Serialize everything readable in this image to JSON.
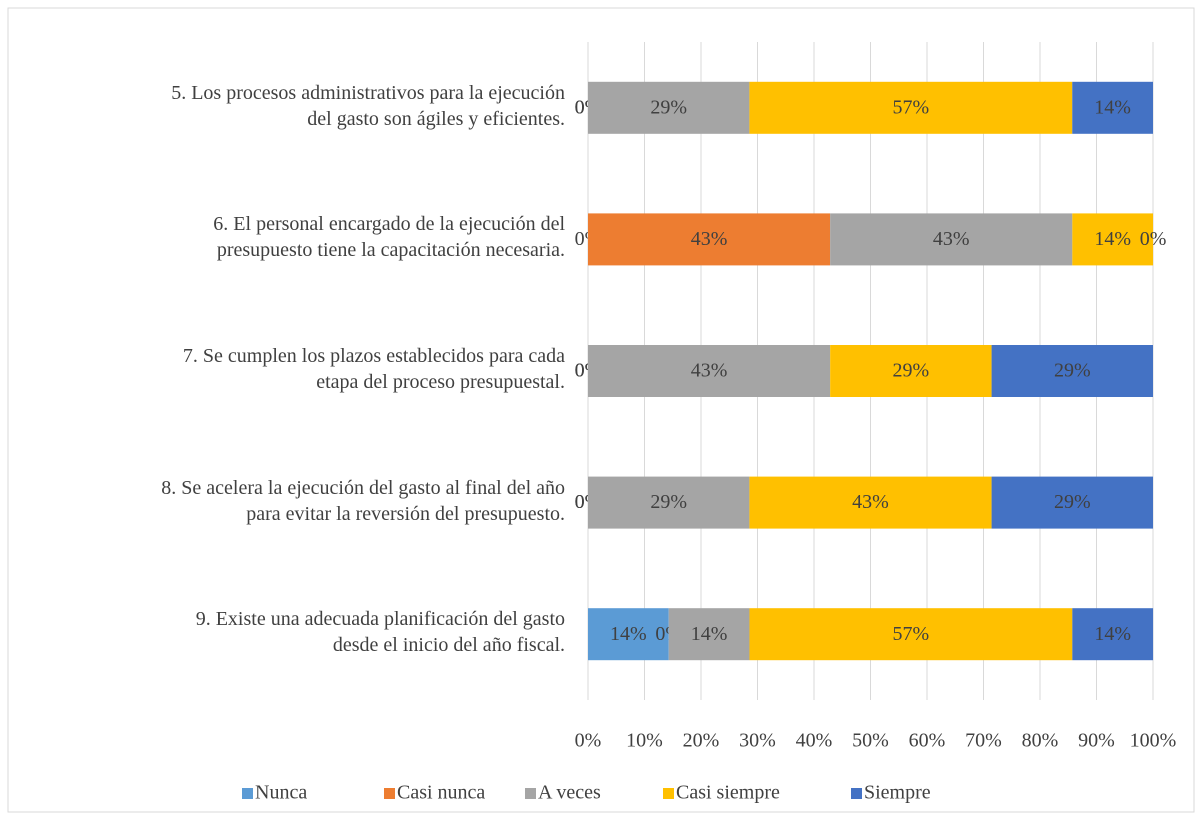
{
  "chart_data": {
    "type": "stacked_barh",
    "categories": [
      "5. Los procesos administrativos para la ejecución\ndel gasto son ágiles y eficientes.",
      "6. El personal encargado de la ejecución del\npresupuesto tiene la capacitación necesaria.",
      "7. Se cumplen los plazos establecidos para cada\netapa del proceso presupuestal.",
      "8. Se acelera la ejecución del gasto al final del año\npara evitar la reversión del presupuesto.",
      "9. Existe una adecuada planificación del gasto\ndesde el inicio del año fiscal."
    ],
    "series": [
      {
        "name": "Nunca",
        "color": "#5b9bd5",
        "values": [
          0,
          0,
          0,
          0,
          14.29
        ],
        "value_labels": [
          "0%",
          "0%",
          "0%",
          "0%",
          "14%"
        ]
      },
      {
        "name": "Casi nunca",
        "color": "#ed7d31",
        "values": [
          0,
          42.86,
          0,
          0,
          0
        ],
        "value_labels": [
          "0%",
          "43%",
          "0%",
          "0%",
          "0%"
        ]
      },
      {
        "name": "A veces",
        "color": "#a5a5a5",
        "values": [
          28.57,
          42.86,
          42.86,
          28.57,
          14.29
        ],
        "value_labels": [
          "29%",
          "43%",
          "43%",
          "29%",
          "14%"
        ]
      },
      {
        "name": "Casi siempre",
        "color": "#ffc000",
        "values": [
          57.14,
          14.29,
          28.57,
          42.86,
          57.14
        ],
        "value_labels": [
          "57%",
          "14%",
          "29%",
          "43%",
          "57%"
        ]
      },
      {
        "name": "Siempre",
        "color": "#4472c4",
        "values": [
          14.29,
          0,
          28.57,
          28.57,
          14.29
        ],
        "value_labels": [
          "14%",
          "0%",
          "29%",
          "29%",
          "14%"
        ]
      }
    ],
    "xlim": [
      0,
      100
    ],
    "xticks": [
      {
        "value": 0,
        "label": "0%"
      },
      {
        "value": 10,
        "label": "10%"
      },
      {
        "value": 20,
        "label": "20%"
      },
      {
        "value": 30,
        "label": "30%"
      },
      {
        "value": 40,
        "label": "40%"
      },
      {
        "value": 50,
        "label": "50%"
      },
      {
        "value": 60,
        "label": "60%"
      },
      {
        "value": 70,
        "label": "70%"
      },
      {
        "value": 80,
        "label": "80%"
      },
      {
        "value": 90,
        "label": "90%"
      },
      {
        "value": 100,
        "label": "100%"
      }
    ],
    "grid": true,
    "legend": "bottom"
  }
}
